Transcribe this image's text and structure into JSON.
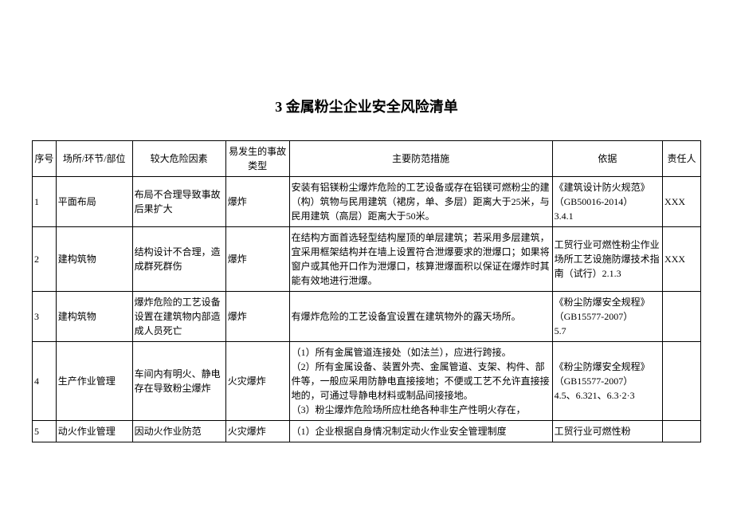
{
  "title": "3 金属粉尘企业安全风险清单",
  "headers": {
    "seq": "序号",
    "place": "场所/环节/部位",
    "risk": "较大危险因素",
    "type": "易发生的事故类型",
    "measure": "主要防范措施",
    "basis": "依据",
    "resp": "责任人"
  },
  "rows": [
    {
      "seq": "1",
      "place": "平面布局",
      "risk": "布局不合理导致事故后果扩大",
      "type": "爆炸",
      "measure": "安装有铝镁粉尘爆炸危险的工艺设备或存在铝镁可燃粉尘的建（构）筑物与民用建筑（裙房，单、多层）距离大于25米，与民用建筑（高层）距离大于50米。",
      "basis": "《建筑设计防火规范》\n（GB50016-2014）\n3.4.1",
      "resp": "XXX"
    },
    {
      "seq": "2",
      "place": "建构筑物",
      "risk": "结构设计不合理，造成群死群伤",
      "type": "爆炸",
      "measure": "在结构方面首选轻型结构屋顶的单层建筑；若采用多层建筑，宜采用框架结构并在墙上设置符合泄爆要求的泄爆口；如果将窗户或其他开口作为泄爆口，核算泄爆面积以保证在爆炸时其能有效地进行泄爆。",
      "basis": "工贸行业可燃性粉尘作业场所工艺设施防爆技术指南（试行）2.1.3",
      "resp": "XXX"
    },
    {
      "seq": "3",
      "place": "建构筑物",
      "risk": "爆炸危险的工艺设备设置在建筑物内部造成人员死亡",
      "type": "爆炸",
      "measure": "有爆炸危险的工艺设备宜设置在建筑物外的露天场所。",
      "basis": "《粉尘防爆安全规程》\n（GB15577-2007）\n5.7",
      "resp": ""
    },
    {
      "seq": "4",
      "place": "生产作业管理",
      "risk": "车间内有明火、静电存在导致粉尘爆炸",
      "type": "火灾爆炸",
      "measure": "（1）所有金属管道连接处（如法兰），应进行跨接。\n（2）所有金属设备、装置外壳、金属管道、支架、构件、部件等，一般应采用防静电直接接地；不便或工艺不允许直接接地的，可通过导静电材料或制品间接接地。\n（3）粉尘爆炸危险场所应杜绝各种非生产性明火存在，",
      "basis": "《粉尘防爆安全规程》\n（GB15577-2007）\n4.5、6.321、6.3·2·3",
      "resp": ""
    },
    {
      "seq": "5",
      "place": "动火作业管理",
      "risk": "因动火作业防范",
      "type": "火灾爆炸",
      "measure": "（1）企业根据自身情况制定动火作业安全管理制度",
      "basis": "工贸行业可燃性粉",
      "resp": ""
    }
  ]
}
